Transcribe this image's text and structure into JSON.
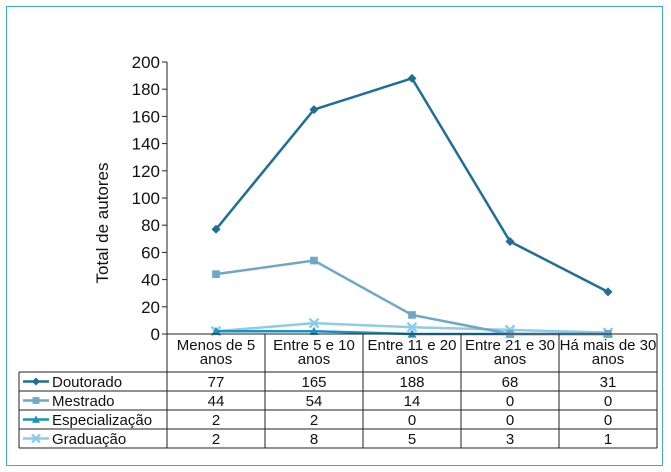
{
  "chart_data": {
    "type": "line",
    "title": "",
    "xlabel": "",
    "ylabel": "Total de autores",
    "ylim": [
      0,
      200
    ],
    "yticks": [
      0,
      20,
      40,
      60,
      80,
      100,
      120,
      140,
      160,
      180,
      200
    ],
    "grid": false,
    "legend": "data-table-left",
    "categories": [
      [
        "Menos de 5",
        "anos"
      ],
      [
        "Entre 5 e 10",
        "anos"
      ],
      [
        "Entre 11 e 20",
        "anos"
      ],
      [
        "Entre 21 e 30",
        "anos"
      ],
      [
        "Há mais de 30",
        "anos"
      ]
    ],
    "series": [
      {
        "name": "Doutorado",
        "values": [
          77,
          165,
          188,
          68,
          31
        ],
        "color": "#1f6f95",
        "marker": "diamond"
      },
      {
        "name": "Mestrado",
        "values": [
          44,
          54,
          14,
          0,
          0
        ],
        "color": "#6fa7c7",
        "marker": "square"
      },
      {
        "name": "Especialização",
        "values": [
          2,
          2,
          0,
          0,
          0
        ],
        "color": "#1d8fc0",
        "marker": "triangle"
      },
      {
        "name": "Graduação",
        "values": [
          2,
          8,
          5,
          3,
          1
        ],
        "color": "#8fcbe8",
        "marker": "x"
      }
    ]
  }
}
